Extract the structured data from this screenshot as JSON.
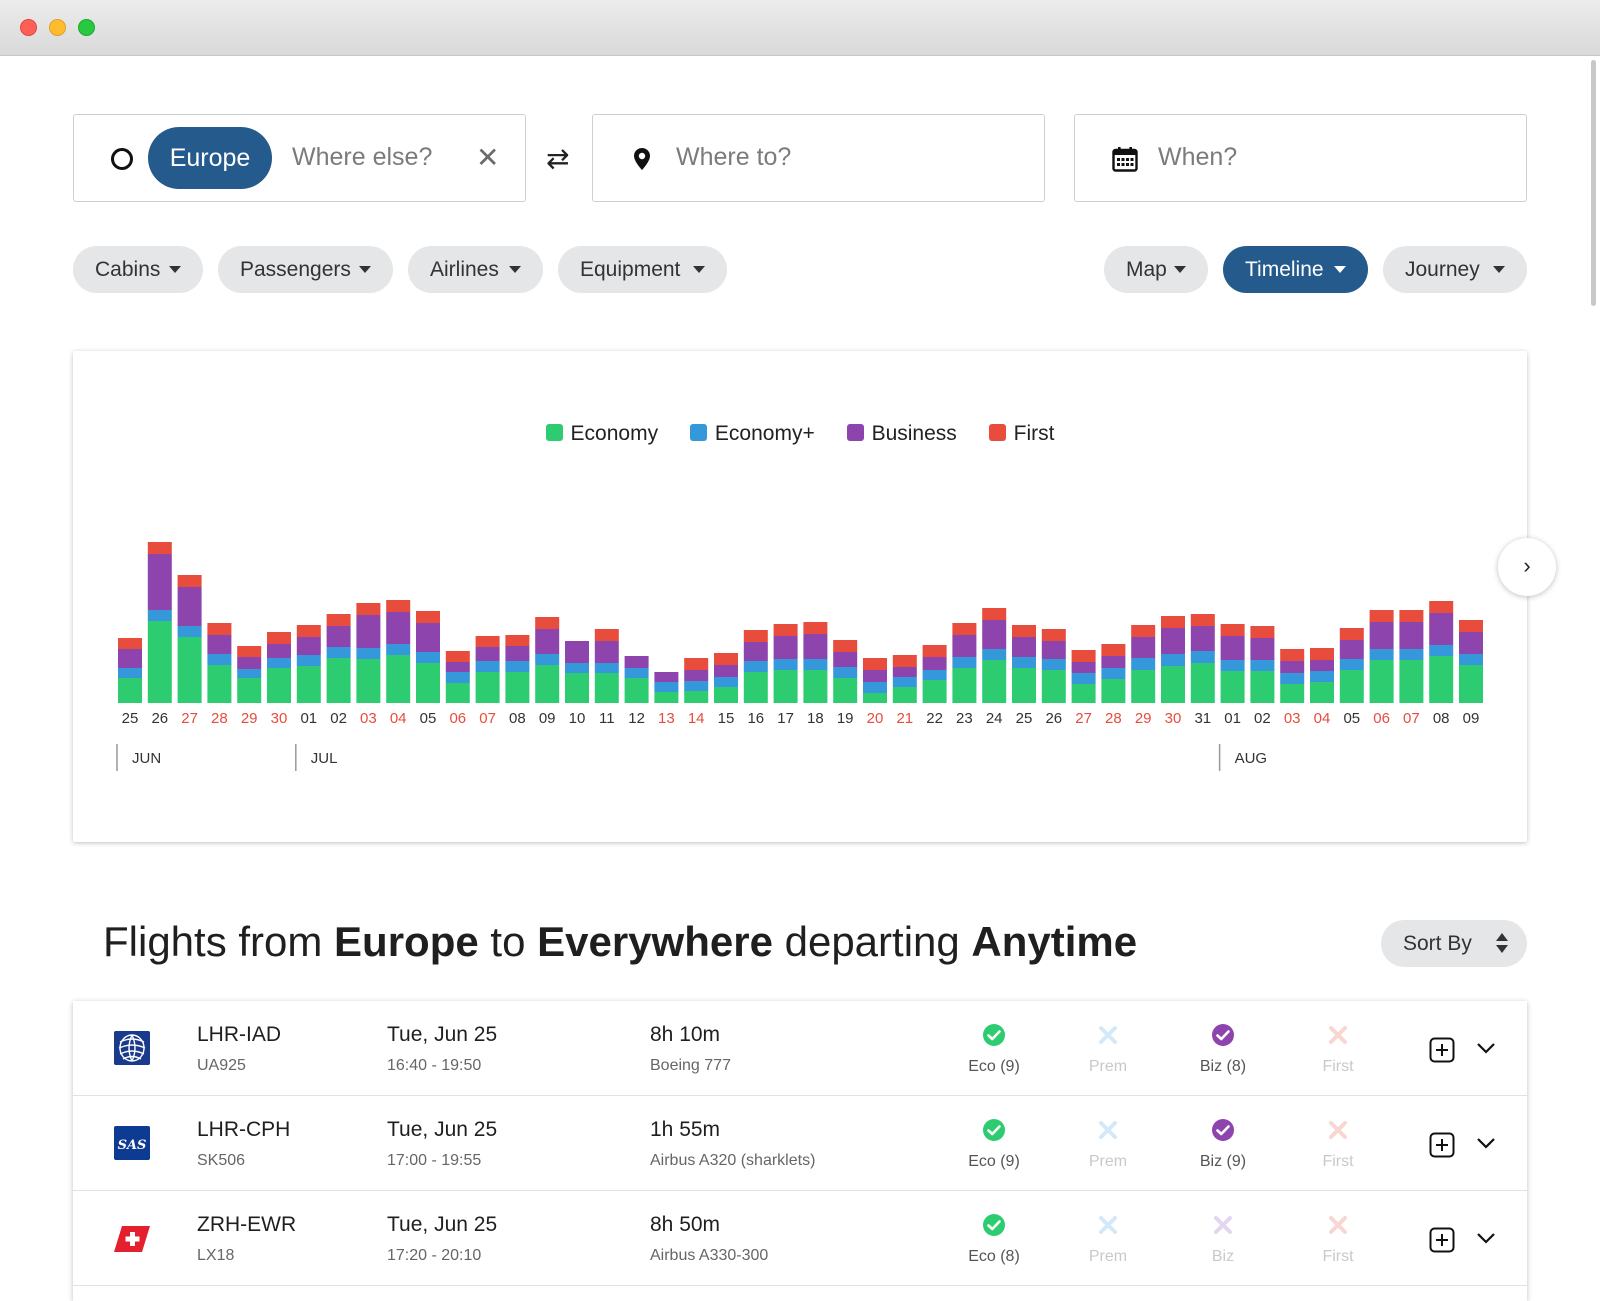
{
  "search": {
    "origin_chip": "Europe",
    "origin_placeholder": "Where else?",
    "destination_placeholder": "Where to?",
    "date_placeholder": "When?"
  },
  "filters": [
    "Cabins",
    "Passengers",
    "Airlines",
    "Equipment"
  ],
  "views": [
    "Map",
    "Timeline",
    "Journey"
  ],
  "active_view": "Timeline",
  "colors": {
    "economy": "#2ecc71",
    "economy_plus": "#3498db",
    "business": "#8e44ad",
    "first": "#e74c3c",
    "accent": "#255a8c",
    "weekend": "#e74c3c"
  },
  "chart_data": {
    "type": "bar",
    "stacked": true,
    "legend_placement": "top-center",
    "legend": [
      "Economy",
      "Economy+",
      "Business",
      "First"
    ],
    "categories": [
      "25",
      "26",
      "27",
      "28",
      "29",
      "30",
      "01",
      "02",
      "03",
      "04",
      "05",
      "06",
      "07",
      "08",
      "09",
      "10",
      "11",
      "12",
      "13",
      "14",
      "15",
      "16",
      "17",
      "18",
      "19",
      "20",
      "21",
      "22",
      "23",
      "24",
      "25",
      "26",
      "27",
      "28",
      "29",
      "30",
      "31",
      "01",
      "02",
      "03",
      "04",
      "05",
      "06",
      "07",
      "08",
      "09"
    ],
    "weekend_days": [
      "29",
      "30",
      "06",
      "07",
      "13",
      "14",
      "20",
      "21",
      "27",
      "28",
      "03",
      "04"
    ],
    "months": [
      {
        "label": "JUN",
        "start_index": 0
      },
      {
        "label": "JUL",
        "start_index": 6
      },
      {
        "label": "AUG",
        "start_index": 37
      }
    ],
    "series": [
      {
        "name": "Economy",
        "values": [
          25,
          82,
          66,
          38,
          25,
          35,
          37,
          45,
          44,
          48,
          40,
          20,
          31,
          31,
          38,
          30,
          30,
          25,
          11,
          12,
          16,
          31,
          33,
          33,
          25,
          10,
          16,
          23,
          35,
          43,
          35,
          33,
          19,
          24,
          33,
          37,
          40,
          32,
          32,
          19,
          21,
          33,
          43,
          43,
          47,
          38
        ]
      },
      {
        "name": "Economy+",
        "values": [
          10,
          11,
          11,
          11,
          9,
          10,
          11,
          11,
          11,
          11,
          11,
          11,
          11,
          11,
          11,
          10,
          10,
          10,
          10,
          10,
          10,
          11,
          11,
          11,
          11,
          11,
          10,
          10,
          11,
          11,
          11,
          11,
          11,
          11,
          12,
          12,
          12,
          11,
          11,
          11,
          11,
          11,
          11,
          11,
          11,
          11
        ]
      },
      {
        "name": "Business",
        "values": [
          19,
          56,
          39,
          19,
          12,
          14,
          18,
          21,
          33,
          32,
          29,
          10,
          14,
          15,
          25,
          22,
          22,
          12,
          10,
          11,
          12,
          19,
          23,
          25,
          15,
          12,
          10,
          13,
          22,
          29,
          20,
          18,
          11,
          12,
          21,
          26,
          25,
          24,
          22,
          12,
          11,
          19,
          27,
          27,
          32,
          22
        ]
      },
      {
        "name": "First",
        "values": [
          11,
          12,
          12,
          12,
          11,
          12,
          12,
          12,
          12,
          12,
          12,
          11,
          11,
          11,
          12,
          0,
          12,
          0,
          0,
          12,
          12,
          12,
          12,
          12,
          12,
          12,
          12,
          12,
          12,
          12,
          12,
          12,
          12,
          12,
          12,
          12,
          12,
          12,
          12,
          12,
          12,
          12,
          12,
          12,
          12,
          12
        ]
      }
    ],
    "xlabel": "",
    "ylabel": "",
    "grid": false
  },
  "results": {
    "title_prefix": "Flights from",
    "origin": "Europe",
    "connector_to": "to",
    "destination": "Everywhere",
    "connector_departing": "departing",
    "when": "Anytime",
    "sort_label": "Sort By"
  },
  "flights": [
    {
      "airline": "United",
      "logo_icon": "united-globe-icon",
      "route": "LHR-IAD",
      "code": "UA925",
      "date": "Tue, Jun 25",
      "time": "16:40 - 19:50",
      "duration": "8h 10m",
      "equipment": "Boeing 777",
      "cabins": [
        {
          "label": "Eco (9)",
          "available": true,
          "color": "#2ecc71"
        },
        {
          "label": "Prem",
          "available": false,
          "color": "#3498db"
        },
        {
          "label": "Biz (8)",
          "available": true,
          "color": "#8e44ad"
        },
        {
          "label": "First",
          "available": false,
          "color": "#e74c3c"
        }
      ]
    },
    {
      "airline": "SAS",
      "logo_icon": "sas-logo-icon",
      "route": "LHR-CPH",
      "code": "SK506",
      "date": "Tue, Jun 25",
      "time": "17:00 - 19:55",
      "duration": "1h 55m",
      "equipment": "Airbus A320 (sharklets)",
      "cabins": [
        {
          "label": "Eco (9)",
          "available": true,
          "color": "#2ecc71"
        },
        {
          "label": "Prem",
          "available": false,
          "color": "#3498db"
        },
        {
          "label": "Biz (9)",
          "available": true,
          "color": "#8e44ad"
        },
        {
          "label": "First",
          "available": false,
          "color": "#e74c3c"
        }
      ]
    },
    {
      "airline": "Swiss",
      "logo_icon": "swiss-flag-icon",
      "route": "ZRH-EWR",
      "code": "LX18",
      "date": "Tue, Jun 25",
      "time": "17:20 - 20:10",
      "duration": "8h 50m",
      "equipment": "Airbus A330-300",
      "cabins": [
        {
          "label": "Eco (8)",
          "available": true,
          "color": "#2ecc71"
        },
        {
          "label": "Prem",
          "available": false,
          "color": "#3498db"
        },
        {
          "label": "Biz",
          "available": false,
          "color": "#8e44ad"
        },
        {
          "label": "First",
          "available": false,
          "color": "#e74c3c"
        }
      ]
    }
  ]
}
